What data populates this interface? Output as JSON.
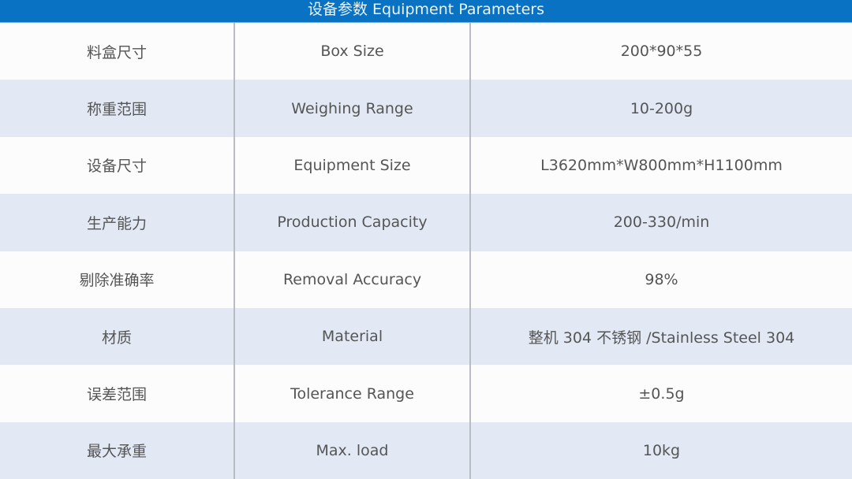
{
  "title": "设备参数 Equipment Parameters",
  "rows": [
    {
      "cn": "料盒尺寸",
      "en": "Box Size",
      "value": "200*90*55"
    },
    {
      "cn": "称重范围",
      "en": "Weighing Range",
      "value": "10-200g"
    },
    {
      "cn": "设备尺寸",
      "en": "Equipment Size",
      "value": "L3620mm*W800mm*H1100mm"
    },
    {
      "cn": "生产能力",
      "en": "Production Capacity",
      "value": "200-330/min"
    },
    {
      "cn": "剔除准确率",
      "en": "Removal Accuracy",
      "value": "98%"
    },
    {
      "cn": "材质",
      "en": "Material",
      "value": "整机 304 不锈钢 /Stainless Steel 304"
    },
    {
      "cn": "误差范围",
      "en": "Tolerance Range",
      "value": "±0.5g"
    },
    {
      "cn": "最大承重",
      "en": "Max. load",
      "value": "10kg"
    }
  ]
}
